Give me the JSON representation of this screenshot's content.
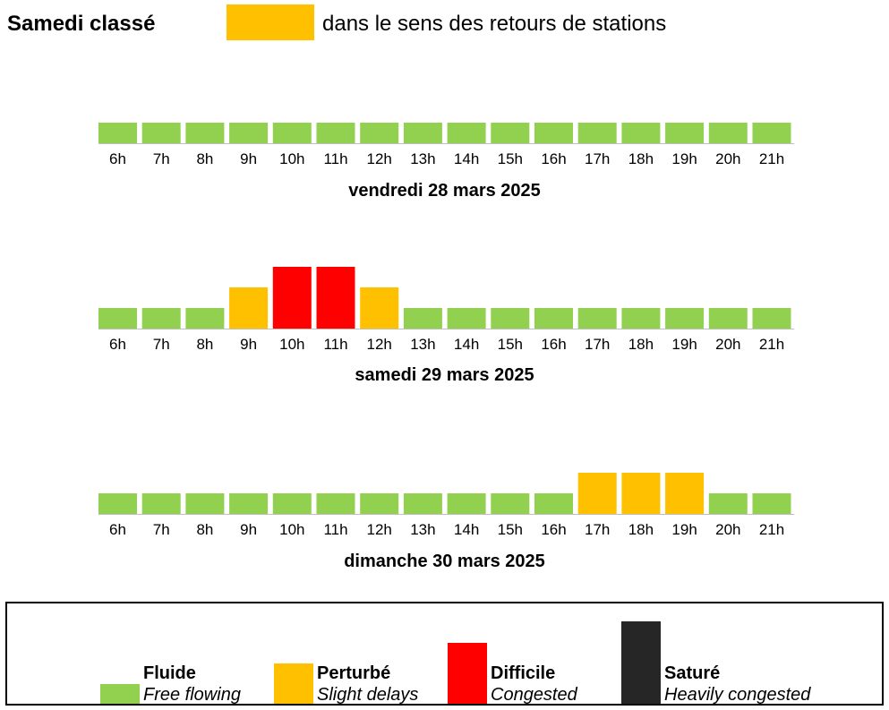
{
  "header": {
    "title": "Samedi classé",
    "swatch_color": "#FFC000",
    "text": "dans le sens des retours de stations"
  },
  "levels": {
    "fluide": {
      "color": "#92D050",
      "value": 1
    },
    "perturbe": {
      "color": "#FFC000",
      "value": 2
    },
    "difficile": {
      "color": "#FF0000",
      "value": 3
    },
    "sature": {
      "color": "#262626",
      "value": 4
    }
  },
  "chart_data": [
    {
      "type": "bar",
      "title": "vendredi 28 mars 2025",
      "categories": [
        "6h",
        "7h",
        "8h",
        "9h",
        "10h",
        "11h",
        "12h",
        "13h",
        "14h",
        "15h",
        "16h",
        "17h",
        "18h",
        "19h",
        "20h",
        "21h"
      ],
      "values": [
        "fluide",
        "fluide",
        "fluide",
        "fluide",
        "fluide",
        "fluide",
        "fluide",
        "fluide",
        "fluide",
        "fluide",
        "fluide",
        "fluide",
        "fluide",
        "fluide",
        "fluide",
        "fluide"
      ],
      "ylim": [
        0,
        4
      ]
    },
    {
      "type": "bar",
      "title": "samedi 29 mars 2025",
      "categories": [
        "6h",
        "7h",
        "8h",
        "9h",
        "10h",
        "11h",
        "12h",
        "13h",
        "14h",
        "15h",
        "16h",
        "17h",
        "18h",
        "19h",
        "20h",
        "21h"
      ],
      "values": [
        "fluide",
        "fluide",
        "fluide",
        "perturbe",
        "difficile",
        "difficile",
        "perturbe",
        "fluide",
        "fluide",
        "fluide",
        "fluide",
        "fluide",
        "fluide",
        "fluide",
        "fluide",
        "fluide"
      ],
      "ylim": [
        0,
        4
      ]
    },
    {
      "type": "bar",
      "title": "dimanche 30 mars 2025",
      "categories": [
        "6h",
        "7h",
        "8h",
        "9h",
        "10h",
        "11h",
        "12h",
        "13h",
        "14h",
        "15h",
        "16h",
        "17h",
        "18h",
        "19h",
        "20h",
        "21h"
      ],
      "values": [
        "fluide",
        "fluide",
        "fluide",
        "fluide",
        "fluide",
        "fluide",
        "fluide",
        "fluide",
        "fluide",
        "fluide",
        "fluide",
        "perturbe",
        "perturbe",
        "perturbe",
        "fluide",
        "fluide"
      ],
      "ylim": [
        0,
        4
      ]
    }
  ],
  "legend": [
    {
      "key": "fluide",
      "label": "Fluide",
      "sub": "Free flowing"
    },
    {
      "key": "perturbe",
      "label": "Perturbé",
      "sub": "Slight delays"
    },
    {
      "key": "difficile",
      "label": "Difficile",
      "sub": "Congested"
    },
    {
      "key": "sature",
      "label": "Saturé",
      "sub": "Heavily congested"
    }
  ]
}
